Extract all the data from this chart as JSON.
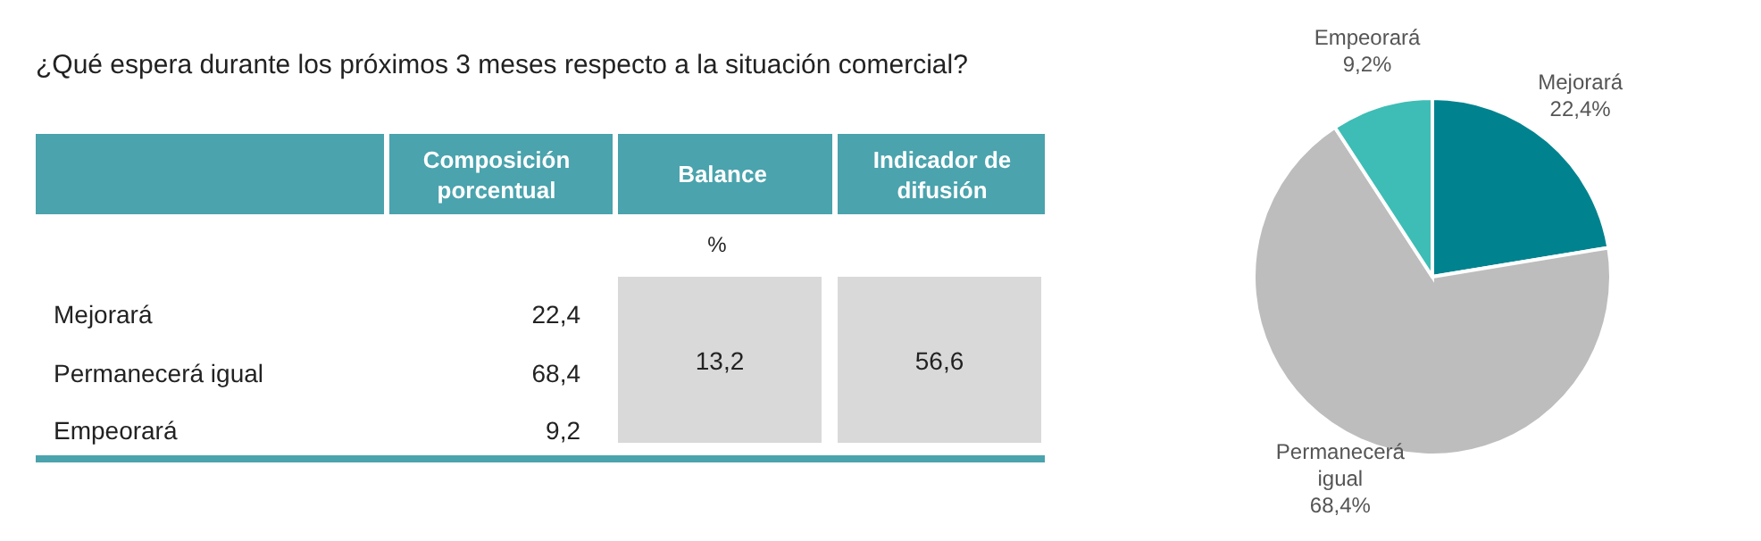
{
  "chart_data": {
    "type": "pie",
    "title": "¿Qué espera durante los próximos 3 meses respecto a la situación comercial?",
    "categories": [
      "Mejorará",
      "Permanecerá igual",
      "Empeorará"
    ],
    "values": [
      22.4,
      68.4,
      9.2
    ],
    "colors": [
      "#00838f",
      "#bdbdbd",
      "#3dbdb5"
    ],
    "value_labels": [
      "22,4%",
      "68,4%",
      "9,2%"
    ],
    "data_labels": true,
    "annotations": [
      "Composición porcentual",
      "Balance",
      "Indicador de difusión",
      "%",
      "13,2",
      "56,6",
      "22,4",
      "68,4",
      "9,2"
    ]
  }
}
